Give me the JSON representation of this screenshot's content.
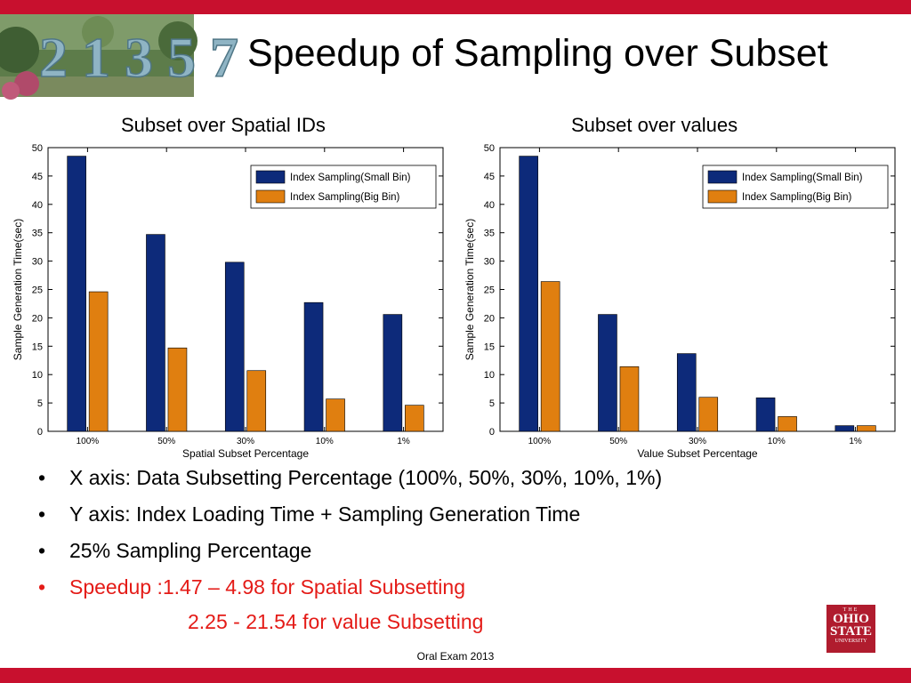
{
  "slide": {
    "title": "Speedup of Sampling over Subset",
    "footer": "Oral Exam 2013",
    "logo": {
      "line1": "THE",
      "line2": "OHIO",
      "line3": "STATE",
      "line4": "UNIVERSITY"
    },
    "photo_text": "2 1 3 5 7",
    "colors": {
      "bar_red": "#c8102e",
      "highlight_red": "#e41b17",
      "series_small": "#0d2a7a",
      "series_big": "#e07f10"
    }
  },
  "bullets": [
    {
      "text": "X axis: Data Subsetting Percentage (100%, 50%, 30%, 10%, 1%)"
    },
    {
      "text": "Y axis: Index Loading Time + Sampling Generation Time"
    },
    {
      "text": "25% Sampling Percentage"
    },
    {
      "text": "Speedup :1.47 – 4.98 for Spatial Subsetting"
    }
  ],
  "bullet_continuation": "2.25 - 21.54 for value Subsetting",
  "chart_data": [
    {
      "type": "bar",
      "title": "Subset over Spatial IDs",
      "xlabel": "Spatial Subset Percentage",
      "ylabel": "Sample Generation Time(sec)",
      "categories": [
        "100%",
        "50%",
        "30%",
        "10%",
        "1%"
      ],
      "ylim": [
        0,
        50
      ],
      "yticks": [
        0,
        5,
        10,
        15,
        20,
        25,
        30,
        35,
        40,
        45,
        50
      ],
      "legend": "top-right",
      "grid": false,
      "series": [
        {
          "name": "Index Sampling(Small Bin)",
          "color": "#0d2a7a",
          "values": [
            48.5,
            34.7,
            29.8,
            22.7,
            20.6
          ]
        },
        {
          "name": "Index Sampling(Big Bin)",
          "color": "#e07f10",
          "values": [
            24.6,
            14.7,
            10.7,
            5.7,
            4.6
          ]
        }
      ]
    },
    {
      "type": "bar",
      "title": "Subset over values",
      "xlabel": "Value Subset Percentage",
      "ylabel": "Sample Generation Time(sec)",
      "categories": [
        "100%",
        "50%",
        "30%",
        "10%",
        "1%"
      ],
      "ylim": [
        0,
        50
      ],
      "yticks": [
        0,
        5,
        10,
        15,
        20,
        25,
        30,
        35,
        40,
        45,
        50
      ],
      "legend": "top-right",
      "grid": false,
      "series": [
        {
          "name": "Index Sampling(Small Bin)",
          "color": "#0d2a7a",
          "values": [
            48.5,
            20.6,
            13.7,
            5.9,
            1.0
          ]
        },
        {
          "name": "Index Sampling(Big Bin)",
          "color": "#e07f10",
          "values": [
            26.4,
            11.4,
            6.0,
            2.6,
            1.0
          ]
        }
      ]
    }
  ]
}
